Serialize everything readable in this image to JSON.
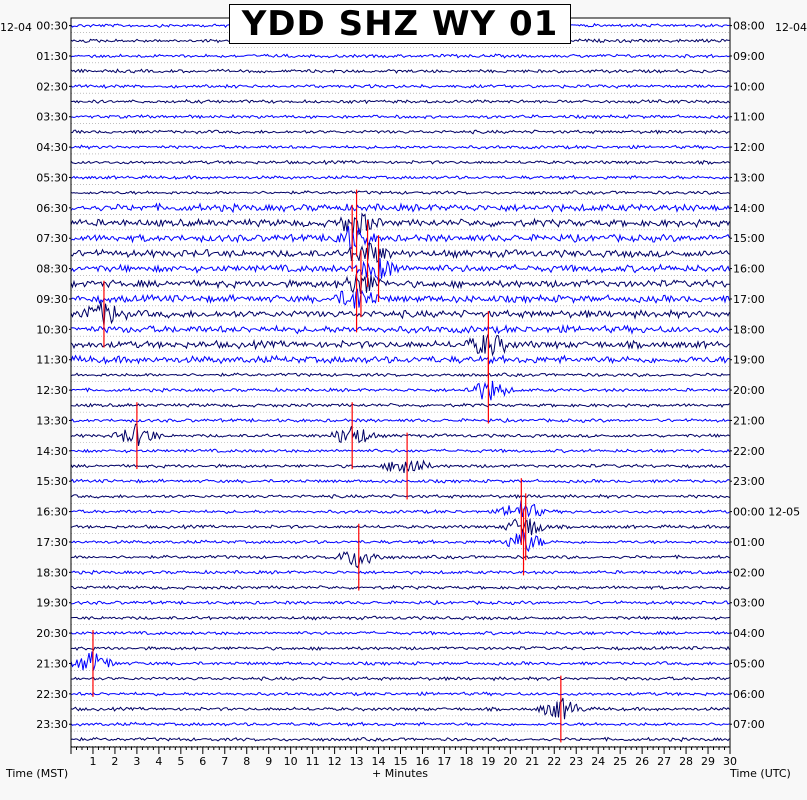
{
  "chart_data": {
    "type": "helicorder",
    "title": "YDD SHZ WY 01",
    "left_axis_label": "Time (MST)",
    "right_axis_label": "Time (UTC)",
    "x_axis_label": "+ Minutes",
    "start_date_left": "12-04",
    "start_date_right": "12-04",
    "next_date_right": "12-05",
    "left_times": [
      "00:30",
      "01:30",
      "02:30",
      "03:30",
      "04:30",
      "05:30",
      "06:30",
      "07:30",
      "08:30",
      "09:30",
      "10:30",
      "11:30",
      "12:30",
      "13:30",
      "14:30",
      "15:30",
      "16:30",
      "17:30",
      "18:30",
      "19:30",
      "20:30",
      "21:30",
      "22:30",
      "23:30"
    ],
    "right_times": [
      "08:00",
      "09:00",
      "10:00",
      "11:00",
      "12:00",
      "13:00",
      "14:00",
      "15:00",
      "16:00",
      "17:00",
      "18:00",
      "19:00",
      "20:00",
      "21:00",
      "22:00",
      "23:00",
      "00:00",
      "01:00",
      "02:00",
      "03:00",
      "04:00",
      "05:00",
      "06:00",
      "07:00"
    ],
    "x_ticks": [
      1,
      2,
      3,
      4,
      5,
      6,
      7,
      8,
      9,
      10,
      11,
      12,
      13,
      14,
      15,
      16,
      17,
      18,
      19,
      20,
      21,
      22,
      23,
      24,
      25,
      26,
      27,
      28,
      29,
      30
    ],
    "xlim": [
      0,
      30
    ],
    "traces_per_hour": 2,
    "trace_colors": [
      "#0000ff",
      "#000066"
    ],
    "clip_color": "#ff0000",
    "events": [
      {
        "row": 13,
        "minute": 13.0
      },
      {
        "row": 14,
        "minute": 12.8
      },
      {
        "row": 15,
        "minute": 13.5
      },
      {
        "row": 16,
        "minute": 14.0
      },
      {
        "row": 17,
        "minute": 13.2
      },
      {
        "row": 18,
        "minute": 13.0
      },
      {
        "row": 19,
        "minute": 1.5
      },
      {
        "row": 21,
        "minute": 19.0
      },
      {
        "row": 24,
        "minute": 19.0
      },
      {
        "row": 27,
        "minute": 3.0
      },
      {
        "row": 27,
        "minute": 12.8
      },
      {
        "row": 29,
        "minute": 15.3
      },
      {
        "row": 32,
        "minute": 20.5
      },
      {
        "row": 33,
        "minute": 20.7
      },
      {
        "row": 34,
        "minute": 20.6
      },
      {
        "row": 35,
        "minute": 13.1
      },
      {
        "row": 42,
        "minute": 1.0
      },
      {
        "row": 45,
        "minute": 22.3
      }
    ]
  }
}
